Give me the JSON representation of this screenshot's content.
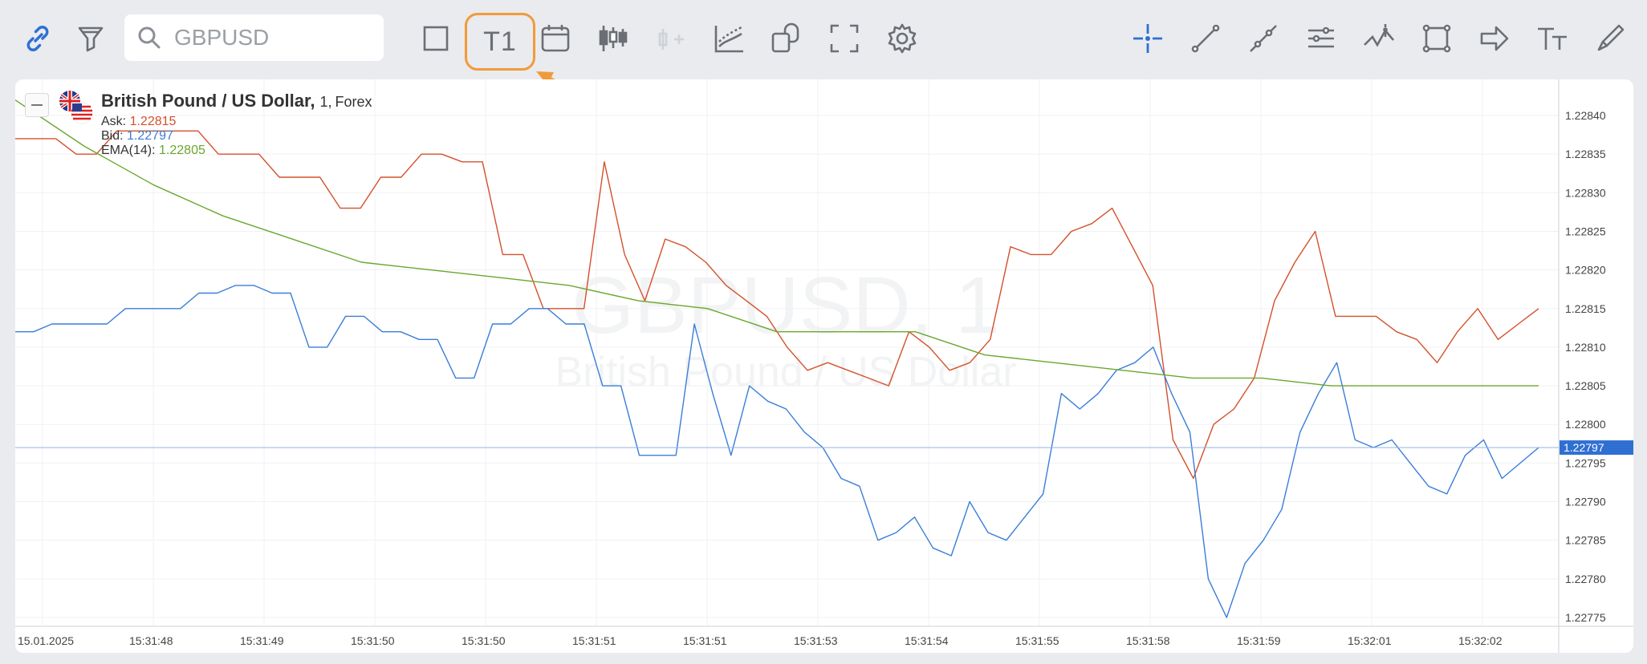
{
  "toolbar": {
    "search_value": "",
    "search_placeholder": "GBPUSD",
    "timeframe_label": "T1",
    "icons": [
      "link-icon",
      "filter-icon",
      "square-icon",
      "calendar-icon",
      "candles-icon",
      "add-indicator-icon",
      "indicators-icon",
      "compare-icon",
      "fullscreen-icon",
      "gear-icon",
      "crosshair-icon",
      "trend-line-icon",
      "ray-icon",
      "parallel-lines-icon",
      "fib-icon",
      "rectangle-icon",
      "arrow-icon",
      "text-icon",
      "brush-icon"
    ]
  },
  "chart": {
    "symbol_name": "British Pound / US Dollar,",
    "timeframe": "1,",
    "type": "Forex",
    "ask_label": "Ask:",
    "ask_value": "1.22815",
    "bid_label": "Bid:",
    "bid_value": "1.22797",
    "ema_label": "EMA(14):",
    "ema_value": "1.22805",
    "watermark_symbol": "GBPUSD, 1",
    "watermark_name": "British Pound / US Dollar",
    "price_tag": "1.22797"
  },
  "colors": {
    "ask": "#d4502b",
    "bid": "#3b7dd8",
    "ema": "#6aa72e",
    "accent_orange": "#f29a3a",
    "tag_bg": "#2f6fd2"
  },
  "chart_data": {
    "type": "line",
    "x_labels": [
      "15.01.2025",
      "15:31:48",
      "15:31:49",
      "15:31:50",
      "15:31:50",
      "15:31:51",
      "15:31:51",
      "15:31:53",
      "15:31:54",
      "15:31:55",
      "15:31:58",
      "15:31:59",
      "15:32:01",
      "15:32:02"
    ],
    "y_ticks": [
      "1.22840",
      "1.22835",
      "1.22830",
      "1.22825",
      "1.22820",
      "1.22815",
      "1.22810",
      "1.22805",
      "1.22800",
      "1.22795",
      "1.22790",
      "1.22785",
      "1.22780",
      "1.22775"
    ],
    "ylim": [
      1.22773,
      1.228425
    ],
    "series": [
      {
        "name": "Ask",
        "values": [
          1.22837,
          1.22837,
          1.22837,
          1.22835,
          1.22835,
          1.22838,
          1.22838,
          1.22838,
          1.22838,
          1.22838,
          1.22835,
          1.22835,
          1.22835,
          1.22832,
          1.22832,
          1.22832,
          1.22828,
          1.22828,
          1.22832,
          1.22832,
          1.22835,
          1.22835,
          1.22834,
          1.22834,
          1.22822,
          1.22822,
          1.22815,
          1.22815,
          1.22815,
          1.22834,
          1.22822,
          1.22816,
          1.22824,
          1.22823,
          1.22821,
          1.22818,
          1.22816,
          1.22814,
          1.2281,
          1.22807,
          1.22808,
          1.22807,
          1.22806,
          1.22805,
          1.22812,
          1.2281,
          1.22807,
          1.22808,
          1.22811,
          1.22823,
          1.22822,
          1.22822,
          1.22825,
          1.22826,
          1.22828,
          1.22823,
          1.22818,
          1.22798,
          1.22793,
          1.228,
          1.22802,
          1.22806,
          1.22816,
          1.22821,
          1.22825,
          1.22814,
          1.22814,
          1.22814,
          1.22812,
          1.22811,
          1.22808,
          1.22812,
          1.22815,
          1.22811,
          1.22813,
          1.22815
        ]
      },
      {
        "name": "Bid",
        "values": [
          1.22812,
          1.22812,
          1.22813,
          1.22813,
          1.22813,
          1.22813,
          1.22815,
          1.22815,
          1.22815,
          1.22815,
          1.22817,
          1.22817,
          1.22818,
          1.22818,
          1.22817,
          1.22817,
          1.2281,
          1.2281,
          1.22814,
          1.22814,
          1.22812,
          1.22812,
          1.22811,
          1.22811,
          1.22806,
          1.22806,
          1.22813,
          1.22813,
          1.22815,
          1.22815,
          1.22813,
          1.22813,
          1.22805,
          1.22805,
          1.22796,
          1.22796,
          1.22796,
          1.22813,
          1.22804,
          1.22796,
          1.22805,
          1.22803,
          1.22802,
          1.22799,
          1.22797,
          1.22793,
          1.22792,
          1.22785,
          1.22786,
          1.22788,
          1.22784,
          1.22783,
          1.2279,
          1.22786,
          1.22785,
          1.22788,
          1.22791,
          1.22804,
          1.22802,
          1.22804,
          1.22807,
          1.22808,
          1.2281,
          1.22804,
          1.22799,
          1.2278,
          1.22775,
          1.22782,
          1.22785,
          1.22789,
          1.22799,
          1.22804,
          1.22808,
          1.22798,
          1.22797,
          1.22798,
          1.22795,
          1.22792,
          1.22791,
          1.22796,
          1.22798,
          1.22793,
          1.22795,
          1.22797
        ]
      },
      {
        "name": "EMA(14)",
        "values": [
          1.22842,
          1.22836,
          1.22831,
          1.22827,
          1.22824,
          1.22821,
          1.2282,
          1.22819,
          1.22818,
          1.22816,
          1.22815,
          1.22812,
          1.22812,
          1.22812,
          1.22809,
          1.22808,
          1.22807,
          1.22806,
          1.22806,
          1.22805,
          1.22805,
          1.22805,
          1.22805
        ]
      }
    ]
  }
}
